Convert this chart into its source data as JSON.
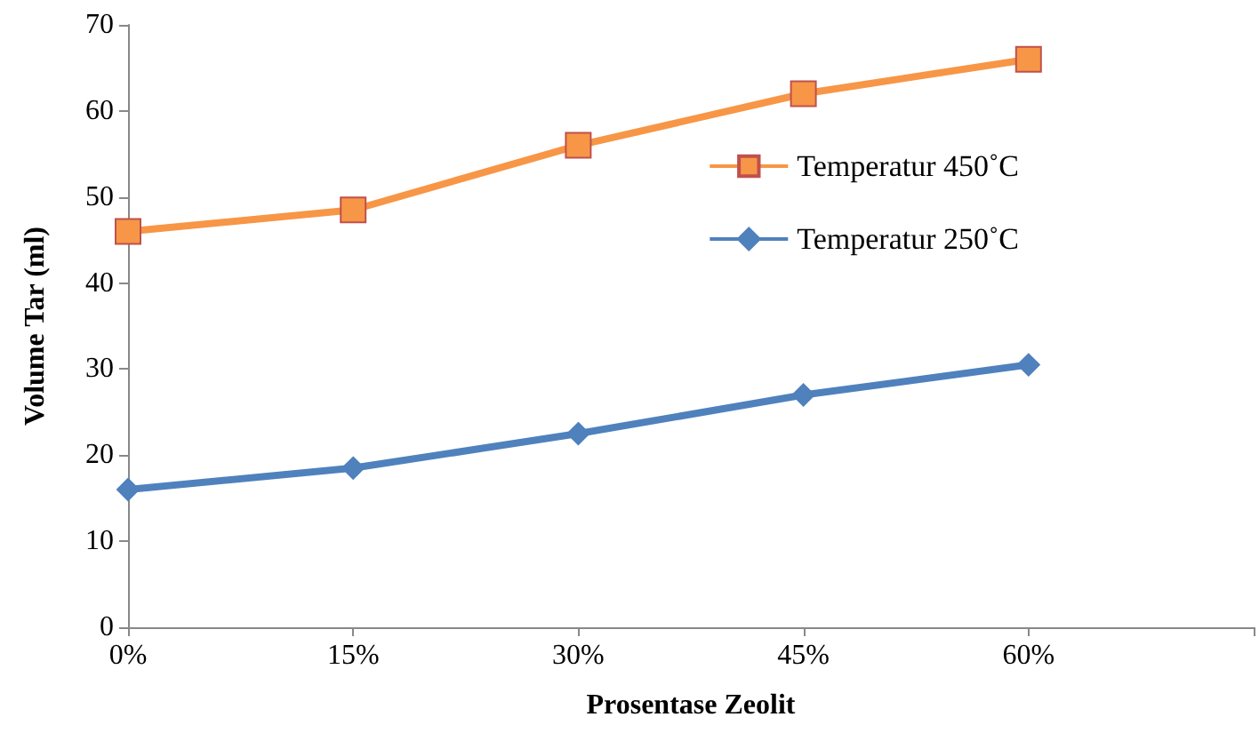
{
  "chart_data": {
    "type": "line",
    "xlabel": "Prosentase Zeolit",
    "ylabel": "Volume Tar (ml)",
    "categories": [
      "0%",
      "15%",
      "30%",
      "45%",
      "60%",
      null
    ],
    "series": [
      {
        "name": "Temperatur 450˚C",
        "color": "#f79646",
        "marker": "square",
        "values": [
          46,
          48.5,
          56,
          62,
          66,
          null
        ]
      },
      {
        "name": "Temperatur 250˚C",
        "color": "#4f81bd",
        "marker": "diamond",
        "values": [
          16,
          18.5,
          22.5,
          27,
          30.5,
          null
        ]
      }
    ],
    "ylim": [
      0,
      70
    ],
    "yticks": [
      0,
      10,
      20,
      30,
      40,
      50,
      60,
      70
    ],
    "grid": false,
    "legend": "right"
  }
}
